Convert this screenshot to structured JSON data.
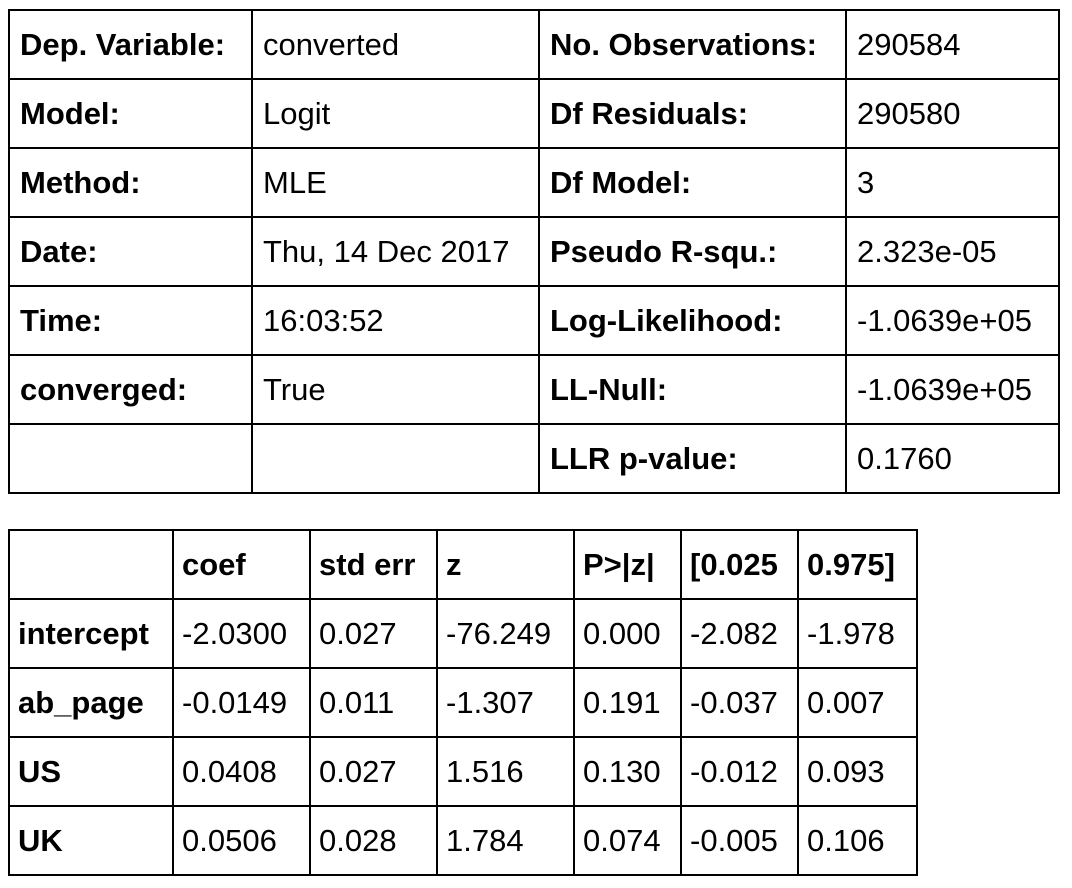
{
  "summary": {
    "rows": [
      [
        "Dep. Variable:",
        "converted",
        "No. Observations:",
        "290584"
      ],
      [
        "Model:",
        "Logit",
        "Df Residuals:",
        "290580"
      ],
      [
        "Method:",
        "MLE",
        "Df Model:",
        "3"
      ],
      [
        "Date:",
        "Thu, 14 Dec 2017",
        "Pseudo R-squ.:",
        "2.323e-05"
      ],
      [
        "Time:",
        "16:03:52",
        "Log-Likelihood:",
        "-1.0639e+05"
      ],
      [
        "converged:",
        "True",
        "LL-Null:",
        "-1.0639e+05"
      ],
      [
        "",
        "",
        "LLR p-value:",
        "0.1760"
      ]
    ]
  },
  "coefficients": {
    "headers": [
      "",
      "coef",
      "std err",
      "z",
      "P>|z|",
      "[0.025",
      "0.975]"
    ],
    "rows": [
      [
        "intercept",
        "-2.0300",
        "0.027",
        "-76.249",
        "0.000",
        "-2.082",
        "-1.978"
      ],
      [
        "ab_page",
        "-0.0149",
        "0.011",
        "-1.307",
        "0.191",
        "-0.037",
        "0.007"
      ],
      [
        "US",
        "0.0408",
        "0.027",
        "1.516",
        "0.130",
        "-0.012",
        "0.093"
      ],
      [
        "UK",
        "0.0506",
        "0.028",
        "1.784",
        "0.074",
        "-0.005",
        "0.106"
      ]
    ]
  }
}
